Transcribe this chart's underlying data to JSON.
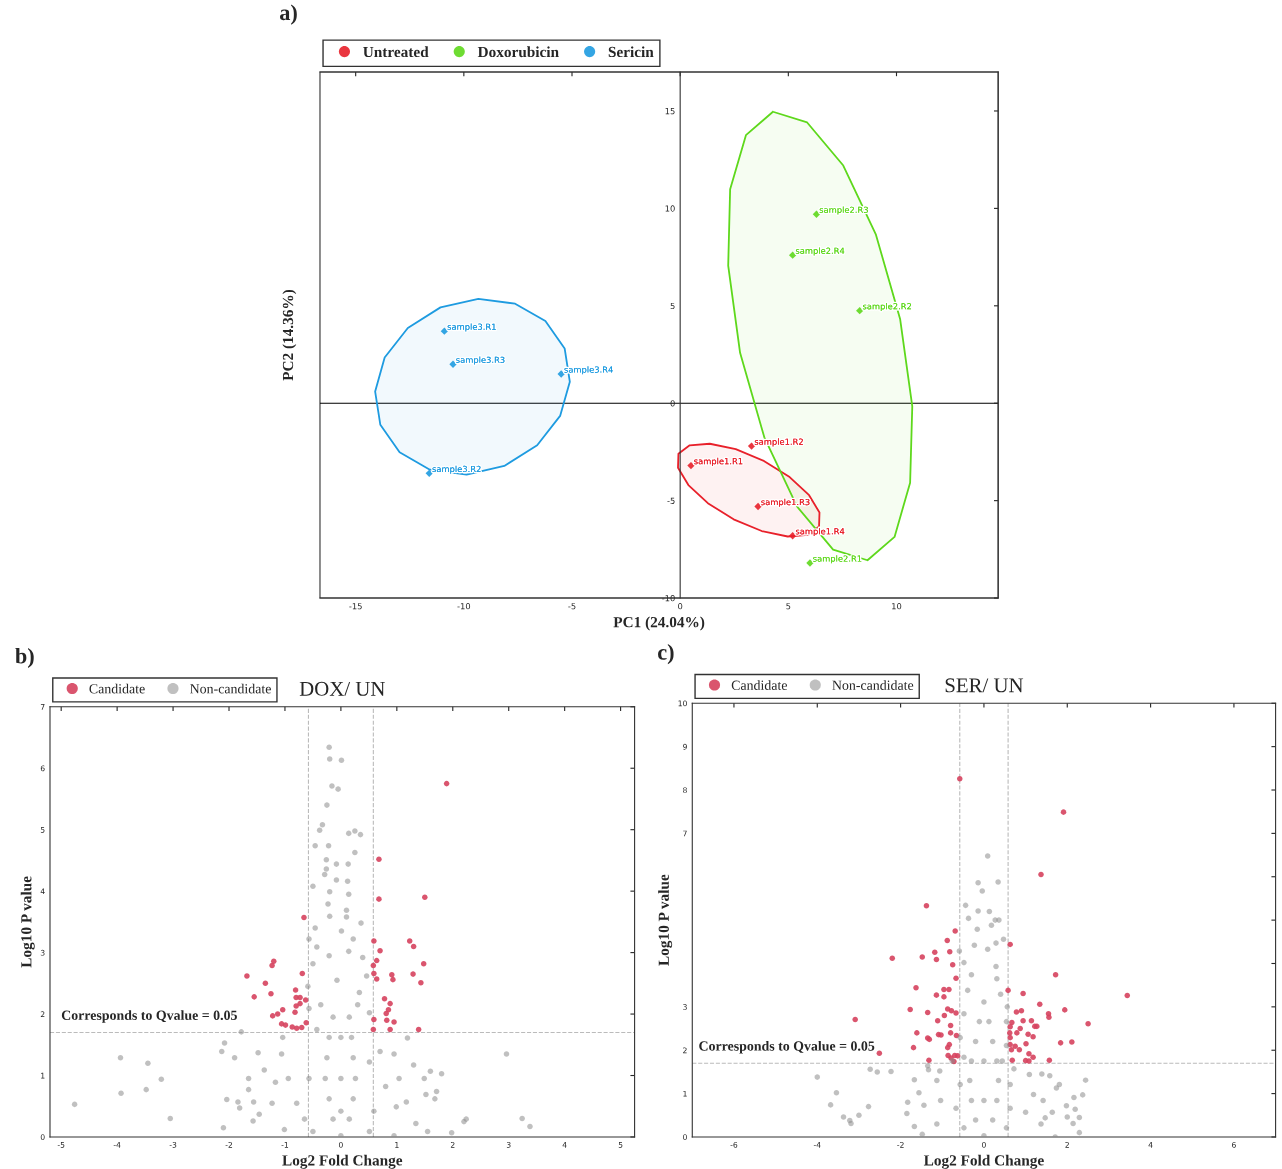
{
  "chart_data": [
    {
      "type": "scatter",
      "xlabel": "PC1 (24.04%)",
      "ylabel": "PC2 (14.36%)",
      "annotations": [
        "a)"
      ],
      "xlim": [
        -16.65,
        14.7
      ],
      "ylim": [
        -10,
        17
      ],
      "xticks": [
        -15,
        -10,
        -5,
        0,
        5,
        10
      ],
      "yticks": [
        -10,
        -5,
        0,
        5,
        10,
        15
      ],
      "grid": false,
      "legend": "top left",
      "ref_lines": [
        {
          "axis": "y",
          "value": 0,
          "color": "#000000",
          "line_style": "solid"
        }
      ],
      "series": [
        {
          "name": "Untreated",
          "marker": "diamond",
          "color": "#e8202a",
          "x": [
            0.5,
            3.3,
            3.6,
            5.2
          ],
          "values": [
            -3.2,
            -2.2,
            -5.3,
            -6.8
          ],
          "value_labels": [
            "sample1.R1",
            "sample1.R2",
            "sample1.R3",
            "sample1.R4"
          ]
        },
        {
          "name": "Doxorubicin",
          "marker": "diamond",
          "color": "#5ed81c",
          "x": [
            6.0,
            8.3,
            6.3,
            5.2
          ],
          "values": [
            -8.2,
            4.75,
            9.7,
            7.6
          ],
          "value_labels": [
            "sample2.R1",
            "sample2.R2",
            "sample2.R3",
            "sample2.R4"
          ]
        },
        {
          "name": "Sericin",
          "marker": "diamond",
          "color": "#1e9be0",
          "x": [
            -10.9,
            -11.6,
            -10.5,
            -5.5
          ],
          "values": [
            3.7,
            -3.6,
            2.0,
            1.5
          ],
          "value_labels": [
            "sample3.R1",
            "sample3.R2",
            "sample3.R3",
            "sample3.R4"
          ]
        },
        {
          "type": "area",
          "color": "#e8202a",
          "x": [
            6.42,
            6.44,
            5.96,
            5.06,
            3.87,
            2.57,
            1.37,
            0.44,
            -0.08,
            -0.1,
            0.38,
            1.28,
            2.47,
            3.77,
            4.97,
            5.91
          ],
          "values": [
            -6.33,
            -5.61,
            -4.72,
            -3.79,
            -2.96,
            -2.36,
            -2.08,
            -2.16,
            -2.59,
            -3.31,
            -4.2,
            -5.13,
            -5.96,
            -6.56,
            -6.84,
            -6.76
          ]
        },
        {
          "type": "area",
          "color": "#5ed81c",
          "x": [
            4.29,
            5.87,
            7.54,
            9.05,
            10.17,
            10.73,
            10.63,
            9.91,
            8.66,
            7.07,
            5.4,
            3.89,
            2.77,
            2.22,
            2.31,
            3.04
          ],
          "values": [
            14.96,
            14.41,
            12.2,
            8.65,
            4.31,
            -0.16,
            -4.08,
            -6.86,
            -8.06,
            -7.51,
            -5.3,
            -1.75,
            2.59,
            7.06,
            10.98,
            13.76
          ]
        },
        {
          "type": "area",
          "color": "#1e9be0",
          "x": [
            -5.1,
            -5.34,
            -6.23,
            -7.63,
            -9.33,
            -11.08,
            -12.59,
            -13.66,
            -14.1,
            -13.86,
            -12.97,
            -11.57,
            -9.87,
            -8.13,
            -6.61,
            -5.55
          ],
          "values": [
            1.1,
            2.81,
            4.22,
            5.11,
            5.36,
            4.92,
            3.86,
            2.35,
            0.6,
            -1.11,
            -2.52,
            -3.41,
            -3.66,
            -3.22,
            -2.16,
            -0.65
          ]
        }
      ]
    },
    {
      "type": "scatter",
      "title": "DOX/ UN",
      "xlabel": "Log2 Fold Change",
      "ylabel": "Log10 P value",
      "annotations": [
        "b)",
        {
          "text": "Corresponds to Qvalue = 0.05",
          "x": -5.0,
          "y": 1.7
        }
      ],
      "xlim": [
        -5.2,
        5.25
      ],
      "ylim": [
        0,
        7
      ],
      "xticks": [
        -5,
        -4,
        -3,
        -2,
        -1,
        0,
        1,
        2,
        3,
        4,
        5
      ],
      "yticks": [
        0,
        1,
        2,
        3,
        4,
        5,
        6,
        7
      ],
      "grid": false,
      "legend": "top left",
      "marker": "circle",
      "ref_lines": [
        {
          "axis": "x",
          "value": -0.58,
          "color": "#bbbbbb",
          "line_style": "dashed"
        },
        {
          "axis": "x",
          "value": 0.58,
          "color": "#bbbbbb",
          "line_style": "dashed"
        },
        {
          "axis": "y",
          "value": 1.7,
          "color": "#bbbbbb",
          "line_style": "dashed"
        }
      ],
      "series": [
        {
          "name": "Candidate",
          "color": "#d6425e",
          "x": [
            1.89,
            0.68,
            0.68,
            1.5,
            -0.66,
            1.23,
            0.59,
            1.3,
            0.7,
            1.48,
            0.64,
            0.58,
            -1.2,
            -1.23,
            -1.68,
            -0.69,
            0.59,
            1.29,
            0.91,
            0.93,
            0.64,
            -1.35,
            1.43,
            -0.81,
            -1.55,
            -1.25,
            -0.8,
            -0.73,
            -0.63,
            0.78,
            -0.73,
            0.88,
            -0.8,
            0.85,
            -1.04,
            -0.82,
            0.81,
            -1.13,
            -1.22,
            0.59,
            0.82,
            0.95,
            -0.62,
            -1.06,
            -0.99,
            -0.87,
            -0.79,
            -0.7,
            0.58,
            0.88,
            1.39
          ],
          "values": [
            5.75,
            4.52,
            3.87,
            3.9,
            3.57,
            3.19,
            3.19,
            3.1,
            3.03,
            2.82,
            2.87,
            2.79,
            2.86,
            2.79,
            2.62,
            2.66,
            2.66,
            2.65,
            2.64,
            2.56,
            2.57,
            2.5,
            2.51,
            2.39,
            2.28,
            2.33,
            2.27,
            2.27,
            2.23,
            2.25,
            2.17,
            2.17,
            2.13,
            2.07,
            2.07,
            2.03,
            2.01,
            2.0,
            1.97,
            1.91,
            1.9,
            1.87,
            1.86,
            1.84,
            1.82,
            1.79,
            1.77,
            1.78,
            1.75,
            1.75,
            1.75
          ]
        },
        {
          "name": "Non-candidate",
          "color": "#8c8c8c",
          "x": [
            -0.21,
            -0.2,
            0.01,
            -0.16,
            -0.05,
            -0.25,
            -0.33,
            -0.38,
            0.14,
            0.25,
            0.35,
            -0.46,
            -0.22,
            0.25,
            -0.26,
            -0.26,
            -0.08,
            0.13,
            -0.29,
            -0.08,
            0.12,
            -0.5,
            -0.2,
            0.14,
            -0.23,
            0.1,
            -0.2,
            0.1,
            -0.46,
            0.36,
            -0.57,
            0.22,
            -0.43,
            0.14,
            0.39,
            -0.5,
            0.46,
            -0.59,
            0.33,
            -0.57,
            0.51,
            -1.78,
            -2.08,
            -2.13,
            -1.9,
            -3.94,
            -3.45,
            -3.21,
            -3.93,
            -3.48,
            -4.76,
            -3.05,
            -2.04,
            -1.84,
            -1.81,
            -2.1,
            -1.65,
            -1.65,
            -1.56,
            -1.46,
            -1.57,
            -1.37,
            -1.48,
            -1.04,
            -1.06,
            -1.17,
            -1.23,
            -1.01,
            1.19,
            1.3,
            1.6,
            1.8,
            1.49,
            1.71,
            1.68,
            1.52,
            1.04,
            0.99,
            1.17,
            1.34,
            1.55,
            1.98,
            2.2,
            2.24,
            2.96,
            3.24,
            3.38,
            0.95,
            0.7,
            0.8,
            0.95,
            0.0,
            -0.14,
            0.15,
            -0.21,
            0.22,
            -0.28,
            0.26,
            -0.25,
            0.22,
            -0.21,
            0.19,
            -0.14,
            0.15,
            0.0,
            0.0,
            0.0,
            -0.65,
            -0.5,
            0.51,
            0.59,
            -0.57,
            0.51,
            -0.79,
            -0.94,
            -0.43,
            -0.36,
            0.3,
            -0.07,
            -0.21,
            0.01
          ],
          "values": [
            6.34,
            6.15,
            6.13,
            5.71,
            5.66,
            5.4,
            5.08,
            4.99,
            4.94,
            4.98,
            4.92,
            4.74,
            4.74,
            4.63,
            4.51,
            4.36,
            4.44,
            4.44,
            4.27,
            4.18,
            4.16,
            4.08,
            3.99,
            3.95,
            3.79,
            3.69,
            3.59,
            3.58,
            3.4,
            3.48,
            3.22,
            3.22,
            3.09,
            3.02,
            2.92,
            2.82,
            2.62,
            2.45,
            2.35,
            2.09,
            2.02,
            1.71,
            1.53,
            1.39,
            1.29,
            1.29,
            1.2,
            0.94,
            0.71,
            0.77,
            0.53,
            0.3,
            0.61,
            0.57,
            0.47,
            0.15,
            0.95,
            0.77,
            0.57,
            0.37,
            0.26,
            1.09,
            1.37,
            1.62,
            1.35,
            0.89,
            0.55,
            0.12,
            1.61,
            1.17,
            1.07,
            1.03,
            0.95,
            0.74,
            0.62,
            0.69,
            0.95,
            0.49,
            0.57,
            0.22,
            0.09,
            0.07,
            0.25,
            0.29,
            1.35,
            0.3,
            0.17,
            1.35,
            1.39,
            0.82,
            0.02,
            0.02,
            0.29,
            0.29,
            0.62,
            0.62,
            0.95,
            0.95,
            1.29,
            1.29,
            1.62,
            1.62,
            1.95,
            1.95,
            0.95,
            1.62,
            0.42,
            0.29,
            0.09,
            0.09,
            0.42,
            0.95,
            1.22,
            0.55,
            0.95,
            1.75,
            2.15,
            2.15,
            2.55,
            2.95,
            3.35
          ]
        }
      ]
    },
    {
      "type": "scatter",
      "title": "SER/ UN",
      "xlabel": "Log2 Fold Change",
      "ylabel": "Log10 P value",
      "annotations": [
        "c)",
        {
          "text": "Corresponds to Qvalue = 0.05",
          "x": -6.85,
          "y": 1.7
        }
      ],
      "xlim": [
        -7,
        7
      ],
      "ylim": [
        0,
        10
      ],
      "xticks": [
        -6,
        -4,
        -2,
        0,
        2,
        4,
        6
      ],
      "yticks": [
        0,
        1,
        2,
        3,
        {
          "value": 4,
          "label": null
        },
        {
          "value": 5,
          "label": null
        },
        {
          "value": 6,
          "label": null
        },
        7,
        8,
        9,
        10
      ],
      "grid": false,
      "legend": "top left",
      "marker": "circle",
      "ref_lines": [
        {
          "axis": "x",
          "value": -0.58,
          "color": "#bbbbbb",
          "line_style": "dashed"
        },
        {
          "axis": "x",
          "value": 0.58,
          "color": "#bbbbbb",
          "line_style": "dashed"
        },
        {
          "axis": "y",
          "value": 1.7,
          "color": "#bbbbbb",
          "line_style": "dashed"
        }
      ],
      "series": [
        {
          "name": "Candidate",
          "color": "#d6425e",
          "x": [
            -0.58,
            1.91,
            1.37,
            -1.38,
            -0.69,
            -0.88,
            0.63,
            -1.18,
            -0.82,
            -1.14,
            -2.2,
            -1.48,
            -0.75,
            1.72,
            -0.67,
            -1.63,
            -0.96,
            -0.84,
            0.58,
            3.44,
            -1.14,
            -0.96,
            0.94,
            1.34,
            -1.77,
            -0.87,
            1.94,
            -1.35,
            -0.78,
            -0.67,
            0.78,
            0.9,
            1.55,
            -3.09,
            -0.95,
            1.56,
            -1.11,
            0.94,
            1.14,
            2.5,
            0.67,
            -0.8,
            0.63,
            1.22,
            1.27,
            0.87,
            -0.8,
            -1.61,
            0.62,
            0.79,
            1.06,
            -1.09,
            -1.03,
            -0.66,
            0.63,
            1.18,
            -1.35,
            -1.31,
            2.11,
            1.84,
            0.63,
            1.01,
            -0.83,
            0.75,
            -0.87,
            -1.69,
            0.66,
            0.85,
            -2.51,
            1.08,
            -0.86,
            -0.7,
            -0.63,
            -0.79,
            1.18,
            0.68,
            1.0,
            1.08,
            1.57,
            -1.32,
            -0.72
          ],
          "values": [
            8.26,
            7.49,
            6.05,
            5.33,
            4.75,
            4.53,
            4.44,
            4.26,
            4.27,
            4.09,
            4.12,
            4.15,
            3.97,
            3.74,
            3.66,
            3.44,
            3.4,
            3.4,
            3.38,
            3.26,
            3.27,
            3.23,
            3.31,
            3.06,
            2.94,
            2.95,
            2.93,
            2.87,
            2.91,
            2.86,
            2.88,
            2.91,
            2.84,
            2.71,
            2.8,
            2.76,
            2.68,
            2.68,
            2.68,
            2.61,
            2.64,
            2.57,
            2.54,
            2.55,
            2.55,
            2.5,
            2.4,
            2.4,
            2.4,
            2.4,
            2.37,
            2.36,
            2.35,
            2.34,
            2.29,
            2.31,
            2.28,
            2.25,
            2.19,
            2.17,
            2.13,
            2.15,
            2.13,
            2.09,
            2.06,
            2.06,
            2.01,
            2.01,
            1.93,
            1.92,
            1.88,
            1.88,
            1.87,
            1.82,
            1.84,
            1.77,
            1.76,
            1.75,
            1.77,
            1.77,
            1.74
          ]
        },
        {
          "name": "Non-candidate",
          "color": "#8c8c8c",
          "x": [
            0.09,
            -0.14,
            0.34,
            -0.04,
            -0.44,
            -0.14,
            0.13,
            -0.37,
            0.27,
            0.36,
            0.18,
            -0.16,
            0.47,
            -0.23,
            0.09,
            0.29,
            -0.59,
            -0.48,
            0.29,
            -0.3,
            0.31,
            -0.39,
            0.4,
            0.56,
            -0.48,
            0.54,
            -0.57,
            0.54,
            -0.48,
            0.44,
            -1.35,
            -1.33,
            -1.06,
            -2.73,
            -2.56,
            -2.23,
            -4.0,
            -3.54,
            -3.68,
            -2.77,
            -3.37,
            -3.22,
            -3.19,
            -3.0,
            -1.67,
            -1.56,
            -1.83,
            -1.85,
            -1.67,
            -1.48,
            -1.44,
            -1.13,
            -1.04,
            -1.13,
            1.09,
            1.39,
            1.58,
            2.44,
            1.81,
            1.74,
            2.37,
            2.16,
            1.42,
            1.98,
            2.19,
            1.64,
            2.0,
            1.47,
            2.29,
            2.14,
            2.29,
            1.71,
            1.37,
            1.19,
            1.0,
            0.0,
            -0.2,
            0.21,
            -0.3,
            0.31,
            -0.34,
            0.35,
            -0.3,
            0.31,
            -0.2,
            0.21,
            -0.11,
            0.12,
            0.0,
            0.0,
            0.0,
            -0.67,
            0.63,
            -0.57,
            0.63,
            -0.48,
            0.54,
            -0.76,
            0.72
          ],
          "values": [
            6.48,
            5.86,
            5.88,
            5.67,
            5.34,
            5.21,
            5.2,
            5.04,
            5.0,
            5.0,
            4.88,
            4.79,
            4.56,
            4.42,
            4.33,
            4.47,
            4.29,
            4.02,
            3.93,
            3.74,
            3.65,
            3.38,
            3.29,
            3.0,
            2.84,
            2.66,
            2.29,
            2.11,
            1.84,
            1.75,
            1.64,
            1.55,
            1.52,
            1.56,
            1.5,
            1.51,
            1.38,
            1.02,
            0.74,
            0.7,
            0.46,
            0.38,
            0.31,
            0.5,
            1.32,
            1.02,
            0.8,
            0.54,
            0.24,
            0.06,
            0.73,
            1.3,
            0.84,
            0.3,
            1.44,
            1.45,
            1.41,
            1.31,
            1.21,
            1.13,
            0.97,
            0.91,
            0.84,
            0.72,
            0.64,
            0.57,
            0.46,
            0.44,
            0.45,
            0.31,
            0.1,
            0.0,
            0.3,
            0.98,
            0.57,
            0.03,
            0.39,
            0.39,
            0.84,
            0.84,
            1.3,
            1.3,
            1.75,
            1.75,
            2.2,
            2.2,
            2.66,
            2.66,
            3.11,
            1.75,
            0.84,
            0.66,
            0.66,
            1.21,
            1.21,
            0.21,
            0.21,
            1.75,
            1.57
          ]
        }
      ]
    }
  ]
}
